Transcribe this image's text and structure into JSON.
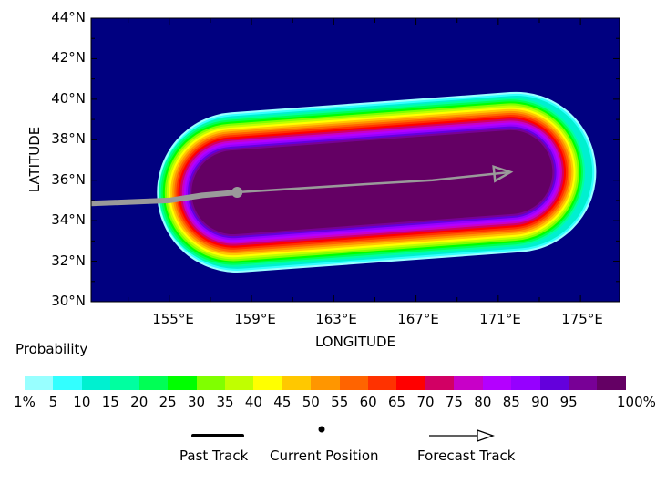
{
  "map": {
    "background_color": "#000080",
    "latitude_labels": [
      "44°N",
      "42°N",
      "40°N",
      "38°N",
      "36°N",
      "34°N",
      "32°N",
      "30°N"
    ],
    "longitude_labels": [
      "155°E",
      "159°E",
      "163°E",
      "167°E",
      "171°E",
      "175°E"
    ],
    "xlabel": "LONGITUDE",
    "ylabel": "LATITUDE",
    "lat_range": [
      30,
      44
    ],
    "lon_range": [
      151.2,
      176.9
    ],
    "current_position": {
      "lon": 158.3,
      "lat": 35.4
    },
    "past_track": [
      [
        151.2,
        34.85
      ],
      [
        155.0,
        35.0
      ],
      [
        156.6,
        35.25
      ],
      [
        158.3,
        35.4
      ]
    ],
    "forecast_track": [
      [
        158.3,
        35.4
      ],
      [
        164.5,
        35.8
      ],
      [
        167.8,
        36.0
      ],
      [
        171.6,
        36.4
      ]
    ]
  },
  "legend": {
    "title": "Probability",
    "scale_labels": [
      "1%",
      "5",
      "10",
      "15",
      "20",
      "25",
      "30",
      "35",
      "40",
      "45",
      "50",
      "55",
      "60",
      "65",
      "70",
      "75",
      "80",
      "85",
      "90",
      "95",
      "100%"
    ],
    "colors": [
      "#98ffff",
      "#33ffff",
      "#00f0d0",
      "#00ffa0",
      "#00ff55",
      "#00ff00",
      "#80ff00",
      "#c0ff00",
      "#ffff00",
      "#ffc800",
      "#ff9600",
      "#ff6400",
      "#ff3200",
      "#ff0000",
      "#d20064",
      "#c800c8",
      "#b400ff",
      "#9600ff",
      "#6400dc",
      "#780096",
      "#640064"
    ],
    "past_track_label": "Past Track",
    "current_position_label": "Current Position",
    "forecast_track_label": "Forecast Track"
  }
}
